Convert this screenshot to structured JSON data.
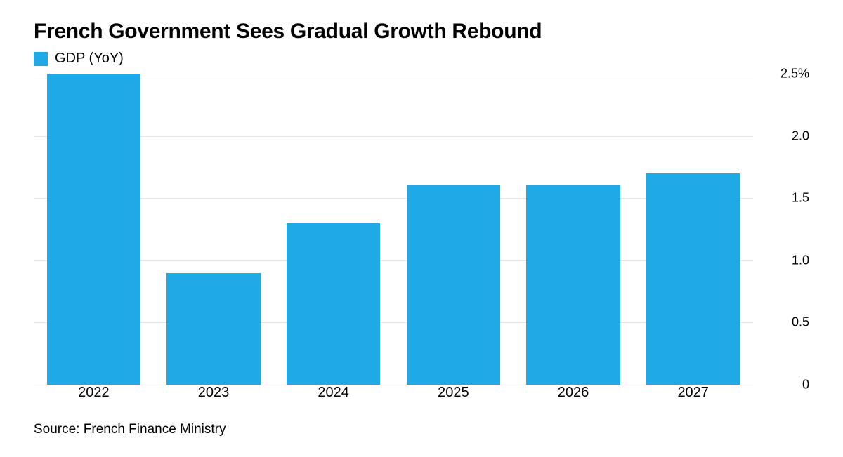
{
  "title": "French Government Sees Gradual Growth Rebound",
  "legend": {
    "swatch_color": "#1fa9e7",
    "label": "GDP (YoY)"
  },
  "chart": {
    "type": "bar",
    "background_color": "#ffffff",
    "grid_color": "#e6e6e6",
    "baseline_color": "#b5b5b5",
    "bar_color": "#1fa9e7",
    "bar_width_ratio": 0.78,
    "categories": [
      "2022",
      "2023",
      "2024",
      "2025",
      "2026",
      "2027"
    ],
    "values": [
      2.5,
      0.9,
      1.3,
      1.6,
      1.6,
      1.7
    ],
    "ylim": [
      0,
      2.5
    ],
    "ytick_step": 0.5,
    "y_ticks": [
      {
        "v": 0,
        "label": "0"
      },
      {
        "v": 0.5,
        "label": "0.5"
      },
      {
        "v": 1.0,
        "label": "1.0"
      },
      {
        "v": 1.5,
        "label": "1.5"
      },
      {
        "v": 2.0,
        "label": "2.0"
      },
      {
        "v": 2.5,
        "label": "2.5%"
      }
    ],
    "title_fontsize": 30,
    "axis_fontsize": 20,
    "ylabel_fontsize": 18
  },
  "source": "Source: French Finance Ministry"
}
